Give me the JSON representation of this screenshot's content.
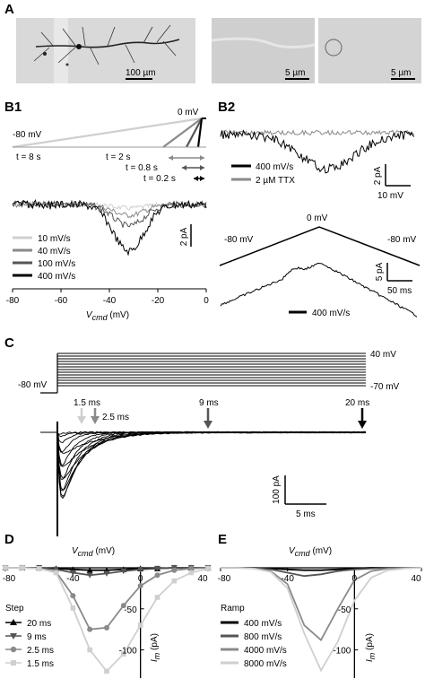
{
  "panels": {
    "A": {
      "label": "A",
      "scalebars": [
        "100 µm",
        "5 µm",
        "5 µm"
      ]
    },
    "B1": {
      "label": "B1",
      "start_label": "-80 mV",
      "end_label": "0 mV",
      "durations": [
        "t = 8 s",
        "t = 2 s",
        "t = 0.8 s",
        "t = 0.2 s"
      ],
      "scale": "2 pA",
      "legend": [
        "10 mV/s",
        "40 mV/s",
        "100 mV/s",
        "400 mV/s"
      ],
      "xaxis_label": "Vcmd (mV)",
      "xaxis_label_main": "V",
      "xaxis_label_sub": "cmd",
      "xaxis_label_unit": " (mV)",
      "xticks": [
        "-80",
        "-60",
        "-40",
        "-20",
        "0"
      ]
    },
    "B2": {
      "label": "B2",
      "legend": [
        "400 mV/s",
        "2 µM TTX"
      ],
      "scale_y": "2 pA",
      "scale_x": "10 mV",
      "ramp_left": "-80 mV",
      "ramp_peak": "0 mV",
      "ramp_right": "-80 mV",
      "scale2_y": "5 pA",
      "scale2_x": "50 ms",
      "ramp_legend": "400 mV/s"
    },
    "C": {
      "label": "C",
      "v_top": "40 mV",
      "v_bottom": "-70 mV",
      "v_hold": "-80 mV",
      "arrows": [
        "1.5 ms",
        "2.5 ms",
        "9 ms",
        "20 ms"
      ],
      "scale_y": "100 pA",
      "scale_x": "5 ms"
    },
    "D": {
      "label": "D",
      "axis_label_main": "V",
      "axis_label_sub": "cmd",
      "axis_label_unit": " (mV)",
      "xticks": [
        "-80",
        "-40",
        "0",
        "40"
      ],
      "yticks": [
        "-50",
        "-100"
      ],
      "ylabel_main": "I",
      "ylabel_sub": "m",
      "ylabel_unit": " (pA)",
      "legend_title": "Step",
      "legend": [
        "20 ms",
        "9 ms",
        "2.5 ms",
        "1.5 ms"
      ]
    },
    "E": {
      "label": "E",
      "axis_label_main": "V",
      "axis_label_sub": "cmd",
      "axis_label_unit": " (mV)",
      "xticks": [
        "-80",
        "-40",
        "0",
        "40"
      ],
      "yticks": [
        "-50",
        "-100"
      ],
      "ylabel_main": "I",
      "ylabel_sub": "m",
      "ylabel_unit": " (pA)",
      "legend_title": "Ramp",
      "legend": [
        "400 mV/s",
        "800 mV/s",
        "4000 mV/s",
        "8000 mV/s"
      ]
    }
  },
  "colors": {
    "c1": "#000000",
    "c2": "#555555",
    "c3": "#8a8a8a",
    "c4": "#cfcfcf"
  },
  "chart_data": [
    {
      "type": "line",
      "panel": "D",
      "xlabel": "Vcmd (mV)",
      "ylabel": "Im (pA)",
      "xlim": [
        -80,
        40
      ],
      "ylim": [
        -130,
        0
      ],
      "series": [
        {
          "name": "20 ms",
          "marker": "triangle-up",
          "x": [
            -80,
            -70,
            -60,
            -50,
            -40,
            -30,
            -20,
            -10,
            0,
            10,
            20,
            30,
            40
          ],
          "y": [
            0,
            0,
            0,
            -1,
            -2,
            -3,
            -3,
            -2,
            -1,
            -1,
            0,
            0,
            0
          ]
        },
        {
          "name": "9 ms",
          "marker": "triangle-down",
          "x": [
            -80,
            -70,
            -60,
            -50,
            -40,
            -30,
            -20,
            -10,
            0,
            10,
            20,
            30,
            40
          ],
          "y": [
            0,
            0,
            0,
            -2,
            -6,
            -9,
            -7,
            -4,
            -2,
            -1,
            0,
            0,
            0
          ]
        },
        {
          "name": "2.5 ms",
          "marker": "circle",
          "x": [
            -80,
            -70,
            -60,
            -50,
            -40,
            -30,
            -20,
            -10,
            0,
            10,
            20,
            30,
            40
          ],
          "y": [
            0,
            0,
            -1,
            -5,
            -34,
            -75,
            -73,
            -46,
            -22,
            -9,
            -3,
            -1,
            0
          ]
        },
        {
          "name": "1.5 ms",
          "marker": "square",
          "x": [
            -80,
            -70,
            -60,
            -50,
            -40,
            -30,
            -20,
            -10,
            0,
            10,
            20,
            30,
            40
          ],
          "y": [
            0,
            0,
            -1,
            -6,
            -49,
            -100,
            -126,
            -105,
            -70,
            -36,
            -16,
            -6,
            -1
          ]
        }
      ]
    },
    {
      "type": "line",
      "panel": "E",
      "xlabel": "Vcmd (mV)",
      "ylabel": "Im (pA)",
      "xlim": [
        -80,
        40
      ],
      "ylim": [
        -130,
        0
      ],
      "series": [
        {
          "name": "400 mV/s",
          "x": [
            -80,
            -70,
            -60,
            -50,
            -40,
            -30,
            -20,
            -10,
            0,
            10,
            20,
            30,
            40
          ],
          "y": [
            0,
            0,
            0,
            -1,
            -2,
            -3,
            -3,
            -2,
            -1,
            0,
            0,
            0,
            0
          ]
        },
        {
          "name": "800 mV/s",
          "x": [
            -80,
            -70,
            -60,
            -50,
            -40,
            -30,
            -20,
            -10,
            0,
            10,
            20,
            30,
            40
          ],
          "y": [
            0,
            0,
            0,
            -2,
            -6,
            -10,
            -8,
            -4,
            -2,
            -1,
            0,
            0,
            0
          ]
        },
        {
          "name": "4000 mV/s",
          "x": [
            -80,
            -70,
            -60,
            -50,
            -40,
            -30,
            -20,
            -10,
            0,
            10,
            20,
            30,
            40
          ],
          "y": [
            0,
            0,
            -1,
            -4,
            -20,
            -70,
            -88,
            -50,
            -15,
            -4,
            -1,
            0,
            0
          ]
        },
        {
          "name": "8000 mV/s",
          "x": [
            -80,
            -70,
            -60,
            -50,
            -40,
            -30,
            -20,
            -10,
            0,
            10,
            20,
            30,
            40
          ],
          "y": [
            0,
            0,
            -1,
            -5,
            -25,
            -80,
            -125,
            -90,
            -40,
            -12,
            -3,
            -1,
            0
          ]
        }
      ]
    }
  ]
}
